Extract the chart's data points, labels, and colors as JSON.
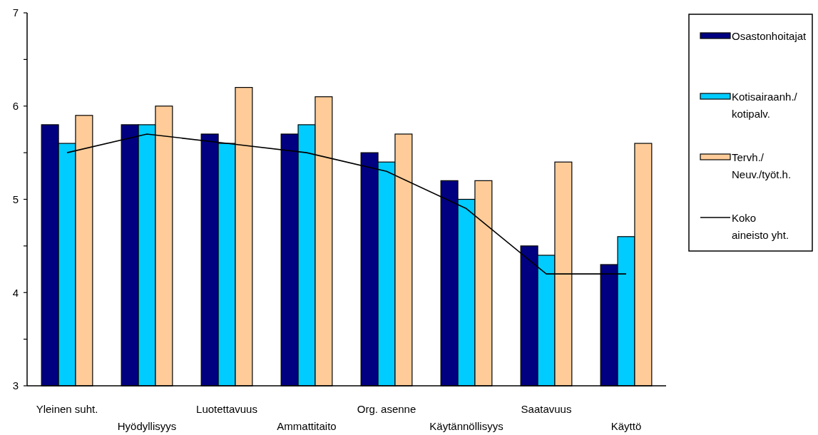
{
  "chart_data": {
    "type": "bar",
    "categories": [
      "Yleinen suht.",
      "Hyödyllisyys",
      "Luotettavuus",
      "Ammattitaito",
      "Org. asenne",
      "Käytännöllisyys",
      "Saatavuus",
      "Käyttö"
    ],
    "series": [
      {
        "name": "Osastonhoitajat",
        "color": "#000080",
        "values": [
          5.8,
          5.8,
          5.7,
          5.7,
          5.5,
          5.2,
          4.5,
          4.3
        ]
      },
      {
        "name": "Kotisairaanh./ kotipalv.",
        "color": "#00ccff",
        "values": [
          5.6,
          5.8,
          5.6,
          5.8,
          5.4,
          5.0,
          4.4,
          4.6
        ]
      },
      {
        "name": "Tervh./ Neuv./työt.h.",
        "color": "#ffcc99",
        "values": [
          5.9,
          6.0,
          6.2,
          6.1,
          5.7,
          5.2,
          5.4,
          5.6
        ]
      },
      {
        "name": "Koko aineisto yht.",
        "type": "line",
        "color": "#000000",
        "values": [
          5.5,
          5.7,
          5.6,
          5.5,
          5.3,
          4.9,
          4.2,
          4.2
        ]
      }
    ],
    "ylim": [
      3,
      7
    ],
    "yticks": [
      3,
      {
        "value": 3.5,
        "label": null
      },
      4,
      {
        "value": 4.5,
        "label": null
      },
      5,
      {
        "value": 5.5,
        "label": null
      },
      6,
      {
        "value": 6.5,
        "label": null
      },
      7
    ],
    "grid": false,
    "legend": "right",
    "marker": "none"
  }
}
